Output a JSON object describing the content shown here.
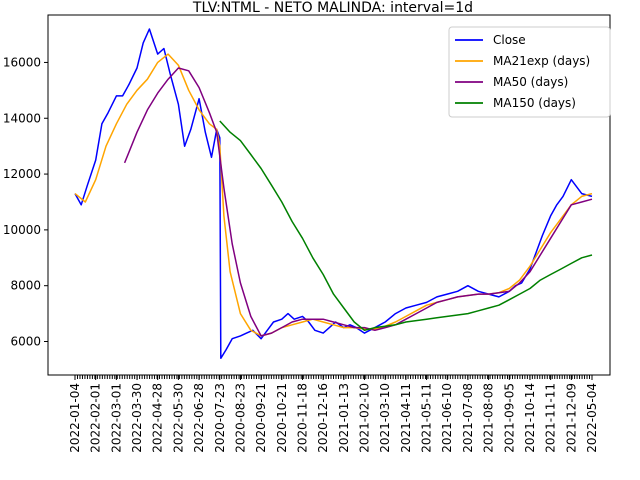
{
  "chart_data": {
    "type": "line",
    "title": "TLV:NTML - NETO MALINDA: interval=1d",
    "xlabel": "",
    "ylabel": "",
    "ylim": [
      4800,
      17700
    ],
    "y_ticks": [
      6000,
      8000,
      10000,
      12000,
      14000,
      16000
    ],
    "y_tick_labels": [
      "6000",
      "8000",
      "10000",
      "12000",
      "14000",
      "16000"
    ],
    "x_tick_labels": [
      "2022-01-04",
      "2022-02-01",
      "2022-03-01",
      "2022-03-30",
      "2022-04-28",
      "2022-05-30",
      "2022-06-28",
      "2020-07-23",
      "2020-08-23",
      "2020-09-21",
      "2020-10-21",
      "2020-11-18",
      "2020-12-16",
      "2021-01-13",
      "2021-02-10",
      "2021-03-10",
      "2021-04-11",
      "2021-05-11",
      "2021-06-10",
      "2021-07-08",
      "2021-08-08",
      "2021-09-05",
      "2021-10-14",
      "2021-11-11",
      "2021-12-09",
      "2022-05-04"
    ],
    "x_note": "x values are the positions of the ticks (0 = first label, 25 = last label)",
    "grid": false,
    "legend_position": "top-right",
    "series": [
      {
        "name": "Close",
        "color": "#0000ff",
        "x": [
          0,
          0.3,
          0.6,
          1,
          1.3,
          1.6,
          2,
          2.3,
          2.6,
          3,
          3.3,
          3.6,
          4,
          4.3,
          4.6,
          5,
          5.3,
          5.6,
          6,
          6.3,
          6.6,
          6.85,
          7.0,
          7.05,
          7.3,
          7.6,
          8,
          8.3,
          8.6,
          9,
          9.3,
          9.6,
          10,
          10.3,
          10.6,
          11,
          11.3,
          11.6,
          12,
          12.3,
          12.6,
          13,
          13.3,
          13.6,
          14,
          14.5,
          15,
          15.5,
          16,
          16.5,
          17,
          17.5,
          18,
          18.5,
          19,
          19.5,
          20,
          20.5,
          21,
          21.3,
          21.6,
          22,
          22.3,
          22.6,
          23,
          23.3,
          23.6,
          24,
          24.5,
          25
        ],
        "y": [
          11300,
          10900,
          11600,
          12500,
          13800,
          14200,
          14800,
          14800,
          15200,
          15800,
          16700,
          17200,
          16300,
          16500,
          15600,
          14500,
          13000,
          13600,
          14700,
          13500,
          12600,
          13600,
          13300,
          5400,
          5700,
          6100,
          6200,
          6300,
          6400,
          6100,
          6400,
          6700,
          6800,
          7000,
          6800,
          6900,
          6700,
          6400,
          6300,
          6500,
          6700,
          6500,
          6600,
          6500,
          6300,
          6500,
          6700,
          7000,
          7200,
          7300,
          7400,
          7600,
          7700,
          7800,
          8000,
          7800,
          7700,
          7600,
          7800,
          8000,
          8100,
          8600,
          9200,
          9800,
          10500,
          10900,
          11200,
          11800,
          11300,
          11200
        ]
      },
      {
        "name": "MA21exp (days)",
        "color": "#ffa500",
        "x": [
          0,
          0.5,
          1,
          1.5,
          2,
          2.5,
          3,
          3.5,
          4,
          4.5,
          5,
          5.5,
          6,
          6.5,
          6.85,
          7.0,
          7.2,
          7.5,
          8,
          8.5,
          9,
          9.5,
          10,
          10.5,
          11,
          11.5,
          12,
          12.5,
          13,
          13.5,
          14,
          14.5,
          15,
          15.5,
          16,
          16.5,
          17,
          17.5,
          18,
          18.5,
          19,
          19.5,
          20,
          20.5,
          21,
          21.5,
          22,
          22.5,
          23,
          23.5,
          24,
          24.5,
          25
        ],
        "y": [
          11300,
          11000,
          11800,
          13000,
          13800,
          14500,
          15000,
          15400,
          16000,
          16300,
          15900,
          15000,
          14300,
          13800,
          13600,
          13000,
          10500,
          8500,
          7000,
          6400,
          6200,
          6300,
          6500,
          6600,
          6700,
          6800,
          6700,
          6600,
          6500,
          6500,
          6450,
          6450,
          6550,
          6700,
          6900,
          7100,
          7300,
          7400,
          7500,
          7600,
          7650,
          7700,
          7700,
          7750,
          7900,
          8200,
          8700,
          9300,
          9900,
          10400,
          10900,
          11200,
          11300
        ]
      },
      {
        "name": "MA50 (days)",
        "color": "#800080",
        "x": [
          2.4,
          3,
          3.5,
          4,
          4.5,
          5,
          5.5,
          6,
          6.5,
          6.85,
          7.2,
          7.6,
          8,
          8.5,
          9,
          9.5,
          10,
          10.5,
          11,
          11.5,
          12,
          12.5,
          13,
          13.5,
          14,
          14.5,
          15,
          15.5,
          16,
          16.5,
          17,
          17.5,
          18,
          18.5,
          19,
          19.5,
          20,
          20.5,
          21,
          21.5,
          22,
          22.5,
          23,
          23.5,
          24,
          24.5,
          25
        ],
        "y": [
          12400,
          13500,
          14300,
          14900,
          15400,
          15800,
          15700,
          15100,
          14200,
          13500,
          11500,
          9500,
          8100,
          6900,
          6200,
          6300,
          6500,
          6700,
          6800,
          6800,
          6800,
          6700,
          6600,
          6500,
          6500,
          6400,
          6500,
          6600,
          6800,
          7000,
          7200,
          7400,
          7500,
          7600,
          7650,
          7700,
          7700,
          7750,
          7800,
          8100,
          8500,
          9100,
          9700,
          10300,
          10900,
          11000,
          11100
        ]
      },
      {
        "name": "MA150 (days)",
        "color": "#008000",
        "x": [
          7.0,
          7.5,
          8,
          8.5,
          9,
          9.5,
          10,
          10.5,
          11,
          11.5,
          12,
          12.5,
          13,
          13.5,
          14,
          14.5,
          15,
          15.5,
          16,
          16.5,
          17,
          17.5,
          18,
          18.5,
          19,
          19.5,
          20,
          20.5,
          21,
          21.5,
          22,
          22.5,
          23,
          23.5,
          24,
          24.5,
          25
        ],
        "y": [
          13900,
          13500,
          13200,
          12700,
          12200,
          11600,
          11000,
          10300,
          9700,
          9000,
          8400,
          7700,
          7200,
          6700,
          6400,
          6500,
          6550,
          6600,
          6700,
          6750,
          6800,
          6850,
          6900,
          6950,
          7000,
          7100,
          7200,
          7300,
          7500,
          7700,
          7900,
          8200,
          8400,
          8600,
          8800,
          9000,
          9100
        ]
      }
    ]
  }
}
